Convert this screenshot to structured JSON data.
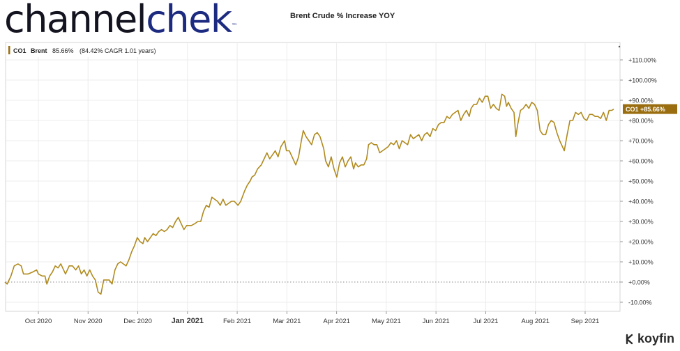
{
  "header": {
    "logo_part1": "channel",
    "logo_part2": "chek",
    "logo_tm": "™",
    "title": "Brent Crude % Increase YOY"
  },
  "footer": {
    "brand": "koyfin"
  },
  "colors": {
    "line": "#b08a1e",
    "badge": "#9a6e10",
    "zero_line": "#888888",
    "grid": "#ececec",
    "logo_blue": "#1c2a80"
  },
  "chart_data": {
    "type": "line",
    "legend": {
      "ticker": "CO1",
      "name": "Brent",
      "value_text": "85.66%",
      "cagr_text": "(84.42% CAGR 1.01 years)"
    },
    "last_value_badge": "CO1  +85.66%",
    "x_label_units": "months since 2020-09-01",
    "xlim": [
      0,
      12.5
    ],
    "ylim": [
      -12,
      118
    ],
    "y_ticks": [
      -10,
      0,
      10,
      20,
      30,
      40,
      50,
      60,
      70,
      80,
      90,
      100,
      110
    ],
    "y_tick_labels": [
      "-10.00%",
      "+0.00%",
      "+10.00%",
      "+20.00%",
      "+30.00%",
      "+40.00%",
      "+50.00%",
      "+60.00%",
      "+70.00%",
      "+80.00%",
      "+90.00%",
      "+100.00%",
      "+110.00%"
    ],
    "x_ticks": [
      {
        "label": "Oct 2020",
        "x": 1,
        "bold": false
      },
      {
        "label": "Nov 2020",
        "x": 2,
        "bold": false
      },
      {
        "label": "Dec 2020",
        "x": 3,
        "bold": false
      },
      {
        "label": "Jan 2021",
        "x": 4,
        "bold": true
      },
      {
        "label": "Feb 2021",
        "x": 5,
        "bold": false
      },
      {
        "label": "Mar 2021",
        "x": 6,
        "bold": false
      },
      {
        "label": "Apr 2021",
        "x": 7,
        "bold": false
      },
      {
        "label": "May 2021",
        "x": 8,
        "bold": false
      },
      {
        "label": "Jun 2021",
        "x": 9,
        "bold": false
      },
      {
        "label": "Jul 2021",
        "x": 10,
        "bold": false
      },
      {
        "label": "Aug 2021",
        "x": 11,
        "bold": false
      },
      {
        "label": "Sep 2021",
        "x": 12,
        "bold": false
      }
    ],
    "series": [
      {
        "values": [
          [
            0.0,
            0
          ],
          [
            0.05,
            -1
          ],
          [
            0.13,
            3
          ],
          [
            0.2,
            8
          ],
          [
            0.28,
            9
          ],
          [
            0.35,
            8
          ],
          [
            0.4,
            4
          ],
          [
            0.5,
            4
          ],
          [
            0.6,
            5
          ],
          [
            0.68,
            6
          ],
          [
            0.72,
            4
          ],
          [
            0.8,
            3
          ],
          [
            0.86,
            3
          ],
          [
            0.9,
            -1
          ],
          [
            0.96,
            3
          ],
          [
            1.02,
            5
          ],
          [
            1.08,
            8
          ],
          [
            1.14,
            7
          ],
          [
            1.2,
            9
          ],
          [
            1.26,
            6
          ],
          [
            1.3,
            4
          ],
          [
            1.38,
            8
          ],
          [
            1.45,
            8
          ],
          [
            1.52,
            6
          ],
          [
            1.58,
            8
          ],
          [
            1.64,
            4
          ],
          [
            1.7,
            6
          ],
          [
            1.76,
            3
          ],
          [
            1.82,
            6
          ],
          [
            1.88,
            3
          ],
          [
            1.94,
            1
          ],
          [
            2.0,
            -5
          ],
          [
            2.06,
            -6
          ],
          [
            2.12,
            1
          ],
          [
            2.18,
            1
          ],
          [
            2.24,
            1
          ],
          [
            2.3,
            -1
          ],
          [
            2.36,
            6
          ],
          [
            2.42,
            9
          ],
          [
            2.48,
            10
          ],
          [
            2.54,
            9
          ],
          [
            2.6,
            8
          ],
          [
            2.66,
            11
          ],
          [
            2.72,
            15
          ],
          [
            2.78,
            18
          ],
          [
            2.84,
            22
          ],
          [
            2.9,
            20
          ],
          [
            2.96,
            19
          ],
          [
            3.0,
            22
          ],
          [
            3.06,
            20
          ],
          [
            3.12,
            22
          ],
          [
            3.18,
            24
          ],
          [
            3.24,
            23
          ],
          [
            3.3,
            25
          ],
          [
            3.36,
            26
          ],
          [
            3.42,
            25
          ],
          [
            3.48,
            26
          ],
          [
            3.54,
            28
          ],
          [
            3.6,
            27
          ],
          [
            3.66,
            30
          ],
          [
            3.72,
            32
          ],
          [
            3.78,
            29
          ],
          [
            3.84,
            26
          ],
          [
            3.9,
            28
          ],
          [
            3.96,
            28
          ],
          [
            4.0,
            28
          ],
          [
            4.08,
            29
          ],
          [
            4.14,
            30
          ],
          [
            4.2,
            30
          ],
          [
            4.26,
            35
          ],
          [
            4.32,
            38
          ],
          [
            4.38,
            37
          ],
          [
            4.44,
            42
          ],
          [
            4.5,
            41
          ],
          [
            4.56,
            40
          ],
          [
            4.62,
            38
          ],
          [
            4.68,
            41
          ],
          [
            4.74,
            38
          ],
          [
            4.8,
            39
          ],
          [
            4.86,
            40
          ],
          [
            4.92,
            40
          ],
          [
            5.0,
            38
          ],
          [
            5.06,
            40
          ],
          [
            5.14,
            45
          ],
          [
            5.2,
            48
          ],
          [
            5.26,
            50
          ],
          [
            5.3,
            52
          ],
          [
            5.36,
            53
          ],
          [
            5.42,
            56
          ],
          [
            5.5,
            58
          ],
          [
            5.56,
            61
          ],
          [
            5.62,
            64
          ],
          [
            5.68,
            61
          ],
          [
            5.74,
            63
          ],
          [
            5.8,
            65
          ],
          [
            5.86,
            62
          ],
          [
            5.92,
            67
          ],
          [
            6.0,
            70
          ],
          [
            6.04,
            65
          ],
          [
            6.1,
            65
          ],
          [
            6.16,
            62
          ],
          [
            6.24,
            58
          ],
          [
            6.3,
            62
          ],
          [
            6.36,
            70
          ],
          [
            6.4,
            75
          ],
          [
            6.46,
            72
          ],
          [
            6.52,
            70
          ],
          [
            6.58,
            68
          ],
          [
            6.64,
            73
          ],
          [
            6.7,
            74
          ],
          [
            6.76,
            72
          ],
          [
            6.84,
            66
          ],
          [
            6.88,
            60
          ],
          [
            6.94,
            57
          ],
          [
            7.0,
            62
          ],
          [
            7.06,
            56
          ],
          [
            7.12,
            52
          ],
          [
            7.18,
            59
          ],
          [
            7.24,
            62
          ],
          [
            7.3,
            57
          ],
          [
            7.36,
            60
          ],
          [
            7.42,
            62
          ],
          [
            7.48,
            56
          ],
          [
            7.52,
            59
          ],
          [
            7.58,
            57
          ],
          [
            7.64,
            58
          ],
          [
            7.7,
            58
          ],
          [
            7.76,
            61
          ],
          [
            7.8,
            68
          ],
          [
            7.86,
            69
          ],
          [
            7.92,
            68
          ],
          [
            7.98,
            68
          ],
          [
            8.04,
            64
          ],
          [
            8.1,
            65
          ],
          [
            8.16,
            66
          ],
          [
            8.22,
            67
          ],
          [
            8.28,
            69
          ],
          [
            8.34,
            68
          ],
          [
            8.4,
            70
          ],
          [
            8.46,
            66
          ],
          [
            8.52,
            70
          ],
          [
            8.58,
            69
          ],
          [
            8.64,
            68
          ],
          [
            8.7,
            73
          ],
          [
            8.76,
            71
          ],
          [
            8.82,
            72
          ],
          [
            8.88,
            73
          ],
          [
            8.94,
            70
          ],
          [
            9.0,
            73
          ],
          [
            9.06,
            74
          ],
          [
            9.12,
            72
          ],
          [
            9.18,
            76
          ],
          [
            9.24,
            75
          ],
          [
            9.3,
            78
          ],
          [
            9.36,
            79
          ],
          [
            9.42,
            79
          ],
          [
            9.48,
            82
          ],
          [
            9.54,
            81
          ],
          [
            9.6,
            83
          ],
          [
            9.66,
            84
          ],
          [
            9.72,
            85
          ],
          [
            9.78,
            80
          ],
          [
            9.84,
            83
          ],
          [
            9.9,
            85
          ],
          [
            9.96,
            82
          ],
          [
            10.0,
            86
          ],
          [
            10.06,
            88
          ],
          [
            10.12,
            88
          ],
          [
            10.18,
            91
          ],
          [
            10.24,
            89
          ],
          [
            10.3,
            92
          ],
          [
            10.36,
            92
          ],
          [
            10.42,
            86
          ],
          [
            10.48,
            88
          ],
          [
            10.54,
            86
          ],
          [
            10.6,
            85
          ],
          [
            10.66,
            93
          ],
          [
            10.72,
            92
          ],
          [
            10.76,
            87
          ],
          [
            10.8,
            89
          ],
          [
            10.86,
            86
          ],
          [
            10.92,
            84
          ],
          [
            10.96,
            72
          ],
          [
            11.0,
            78
          ],
          [
            11.06,
            85
          ],
          [
            11.12,
            86
          ],
          [
            11.18,
            88
          ],
          [
            11.24,
            86
          ],
          [
            11.3,
            89
          ],
          [
            11.36,
            88
          ],
          [
            11.42,
            85
          ],
          [
            11.48,
            75
          ],
          [
            11.54,
            73
          ],
          [
            11.6,
            73
          ],
          [
            11.66,
            78
          ],
          [
            11.72,
            80
          ],
          [
            11.78,
            79
          ],
          [
            11.84,
            74
          ],
          [
            11.9,
            70
          ],
          [
            11.96,
            67
          ],
          [
            12.0,
            65
          ],
          [
            12.06,
            73
          ],
          [
            12.12,
            80
          ],
          [
            12.18,
            80
          ],
          [
            12.24,
            84
          ],
          [
            12.3,
            83
          ],
          [
            12.36,
            84
          ],
          [
            12.42,
            81
          ],
          [
            12.48,
            80
          ],
          [
            12.54,
            83
          ],
          [
            12.6,
            83
          ],
          [
            12.66,
            82
          ],
          [
            12.72,
            82
          ],
          [
            12.78,
            81
          ],
          [
            12.84,
            84
          ],
          [
            12.9,
            80
          ],
          [
            12.96,
            85
          ],
          [
            13.02,
            85
          ],
          [
            13.06,
            85.66
          ]
        ]
      }
    ]
  }
}
